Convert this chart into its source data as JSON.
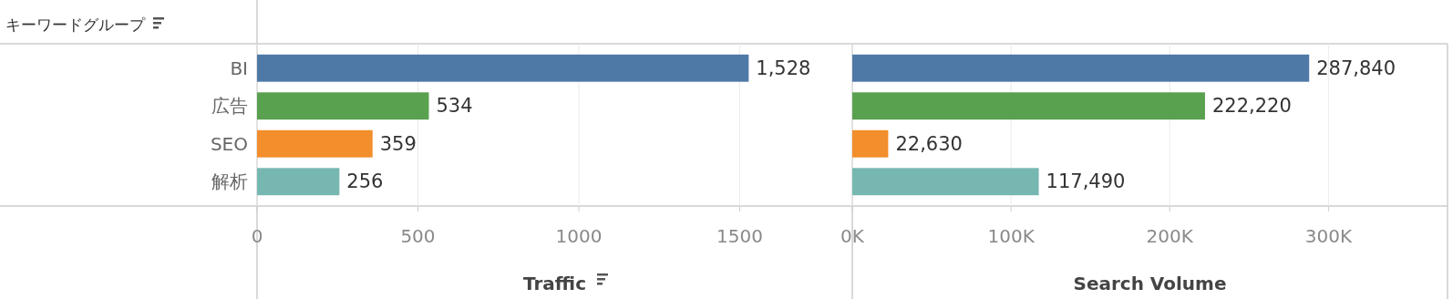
{
  "chart_data": [
    {
      "type": "bar",
      "orientation": "horizontal",
      "ylabel": "キーワードグループ",
      "xlabel": "Traffic",
      "categories": [
        "BI",
        "広告",
        "SEO",
        "解析"
      ],
      "values": [
        1528,
        534,
        359,
        256
      ],
      "colors": [
        "#4e79a7",
        "#59a14f",
        "#f28e2b",
        "#76b7b2"
      ],
      "value_labels": [
        "1,528",
        "534",
        "359",
        "256"
      ],
      "xlim": [
        0,
        1850
      ],
      "xticks": [
        0,
        500,
        1000,
        1500
      ],
      "grid": "x"
    },
    {
      "type": "bar",
      "orientation": "horizontal",
      "xlabel": "Search Volume",
      "categories": [
        null,
        null,
        null,
        null
      ],
      "values": [
        287840,
        222220,
        22630,
        117490
      ],
      "colors": [
        "#4e79a7",
        "#59a14f",
        "#f28e2b",
        "#76b7b2"
      ],
      "value_labels": [
        "287,840",
        "222,220",
        "22,630",
        "117,490"
      ],
      "xlim": [
        0,
        375000
      ],
      "xticks": [
        {
          "value": 0,
          "label": "0K"
        },
        {
          "value": 100000,
          "label": "100K"
        },
        {
          "value": 200000,
          "label": "200K"
        },
        {
          "value": 300000,
          "label": "300K"
        }
      ],
      "grid": "x",
      "tick_labels": "x"
    }
  ]
}
